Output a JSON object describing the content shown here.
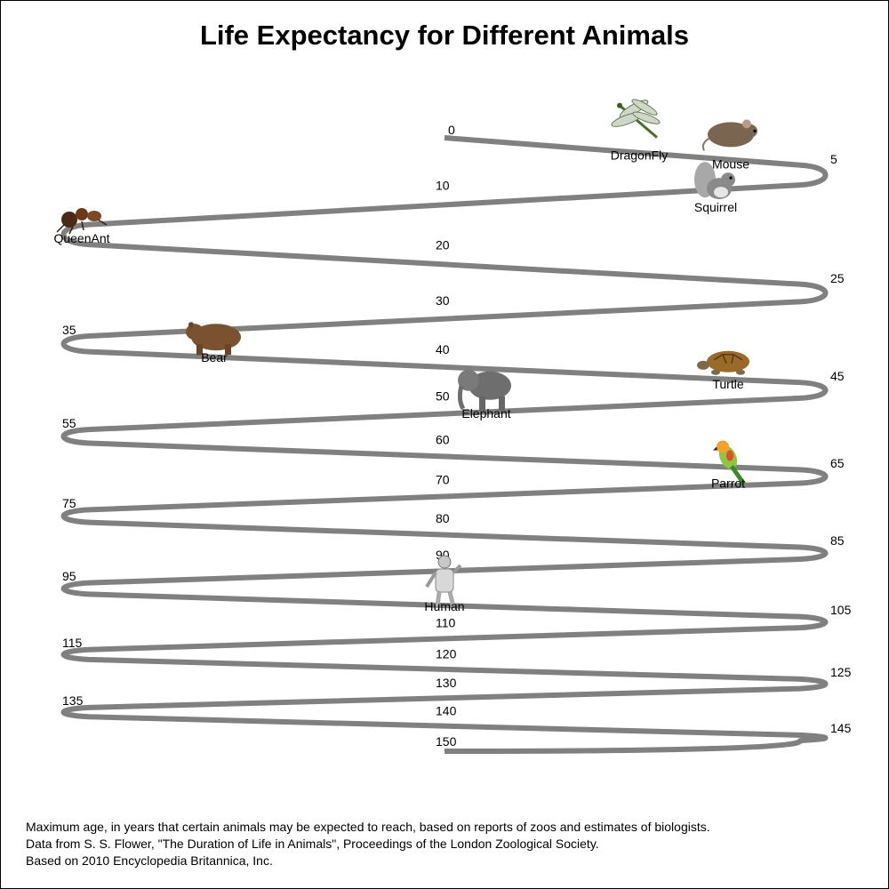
{
  "title": "Life Expectancy for Different Animals",
  "notes": [
    "Maximum age, in years that certain animals may be expected to reach, based on reports of zoos and estimates of biologists.",
    "Data from S. S. Flower, \"The Duration of Life in Animals\", Proceedings of the London Zoological Society.",
    "Based on 2010 Encyclopedia Britannica, Inc."
  ],
  "chart_data": {
    "type": "scatter",
    "title": "Life Expectancy for Different Animals",
    "scale_ticks": [
      0,
      5,
      10,
      20,
      25,
      30,
      35,
      40,
      45,
      50,
      55,
      60,
      65,
      70,
      75,
      80,
      85,
      90,
      95,
      105,
      110,
      115,
      120,
      125,
      130,
      135,
      140,
      145,
      150
    ],
    "range": [
      0,
      150
    ],
    "animals": [
      {
        "name": "DragonFly",
        "years": 1,
        "icon": "dragonfly-icon"
      },
      {
        "name": "Mouse",
        "years": 4,
        "icon": "mouse-icon"
      },
      {
        "name": "Squirrel",
        "years": 8,
        "icon": "squirrel-icon"
      },
      {
        "name": "QueenAnt",
        "years": 15,
        "icon": "queen-ant-icon"
      },
      {
        "name": "Bear",
        "years": 36,
        "icon": "bear-icon"
      },
      {
        "name": "Turtle",
        "years": 44,
        "icon": "turtle-icon"
      },
      {
        "name": "Elephant",
        "years": 51,
        "icon": "elephant-icon"
      },
      {
        "name": "Parrot",
        "years": 66,
        "icon": "parrot-icon"
      },
      {
        "name": "Human",
        "years": 100,
        "icon": "human-statue-icon"
      }
    ],
    "colors": {
      "path": "#808080",
      "text": "#000000"
    }
  }
}
